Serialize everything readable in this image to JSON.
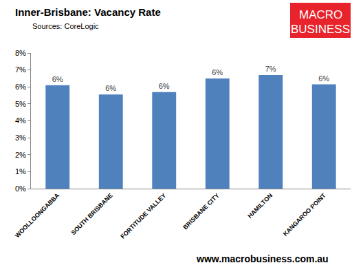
{
  "chart_data": {
    "type": "bar",
    "title": "Inner-Brisbane: Vacancy Rate",
    "subtitle": "Sources: CoreLogic",
    "categories": [
      "WOOLLOONGABBA",
      "SOUTH BRISBANE",
      "FORTITUDE VALLEY",
      "BRISBANE CITY",
      "HAMILTON",
      "KANGAROO POINT"
    ],
    "values": [
      6.1,
      5.55,
      5.7,
      6.5,
      6.7,
      6.15
    ],
    "value_labels": [
      "6%",
      "6%",
      "6%",
      "6%",
      "7%",
      "6%"
    ],
    "color": "#4f81bd",
    "ylim": [
      0,
      8
    ],
    "yticks": [
      {
        "value": 0,
        "label": "0%"
      },
      {
        "value": 1,
        "label": "1%"
      },
      {
        "value": 2,
        "label": "2%"
      },
      {
        "value": 3,
        "label": "3%"
      },
      {
        "value": 4,
        "label": "4%"
      },
      {
        "value": 5,
        "label": "5%"
      },
      {
        "value": 6,
        "label": "6%"
      },
      {
        "value": 7,
        "label": "7%"
      },
      {
        "value": 8,
        "label": "8%"
      }
    ],
    "grid": false,
    "data_labels": true,
    "annotations": [
      "MACRO",
      "BUSINESS",
      "www.macrobusiness.com.au"
    ]
  }
}
